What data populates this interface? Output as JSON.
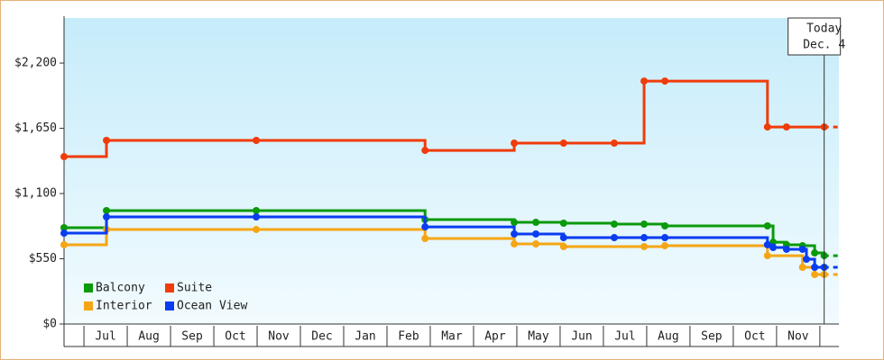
{
  "chart_data": {
    "type": "step-line",
    "ylim": [
      0,
      2580
    ],
    "yticks": [
      {
        "value": 0,
        "label": "$0"
      },
      {
        "value": 550,
        "label": "$550"
      },
      {
        "value": 1100,
        "label": "$1,100"
      },
      {
        "value": 1650,
        "label": "$1,650"
      },
      {
        "value": 2200,
        "label": "$2,200"
      }
    ],
    "xlim": [
      -0.46,
      17.44
    ],
    "xticks": [
      {
        "value": 0,
        "label": "Jul"
      },
      {
        "value": 1,
        "label": "Aug"
      },
      {
        "value": 2,
        "label": "Sep"
      },
      {
        "value": 3,
        "label": "Oct"
      },
      {
        "value": 4,
        "label": "Nov"
      },
      {
        "value": 5,
        "label": "Dec"
      },
      {
        "value": 6,
        "label": "Jan"
      },
      {
        "value": 7,
        "label": "Feb"
      },
      {
        "value": 8,
        "label": "Mar"
      },
      {
        "value": 9,
        "label": "Apr"
      },
      {
        "value": 10,
        "label": "May"
      },
      {
        "value": 11,
        "label": "Jun"
      },
      {
        "value": 12,
        "label": "Jul"
      },
      {
        "value": 13,
        "label": "Aug"
      },
      {
        "value": 14,
        "label": "Sep"
      },
      {
        "value": 15,
        "label": "Oct"
      },
      {
        "value": 16,
        "label": "Nov"
      }
    ],
    "today": {
      "x": 17.1,
      "label": "Today",
      "date": "Dec. 4"
    },
    "series": [
      {
        "name": "Balcony",
        "color": "#0a9a0a",
        "x": [
          -0.46,
          0.52,
          3.98,
          7.88,
          9.94,
          10.44,
          11.08,
          12.25,
          12.94,
          13.42,
          15.79,
          15.92,
          16.23,
          16.6,
          16.88,
          17.1
        ],
        "values": [
          812,
          956,
          956,
          880,
          857,
          857,
          850,
          842,
          842,
          827,
          827,
          690,
          668,
          660,
          599,
          576
        ]
      },
      {
        "name": "Suite",
        "color": "#f03c0a",
        "x": [
          -0.46,
          0.52,
          3.98,
          7.88,
          9.94,
          11.08,
          12.25,
          12.94,
          13.42,
          15.79,
          16.23,
          17.1
        ],
        "values": [
          1411,
          1548,
          1548,
          1464,
          1525,
          1525,
          1525,
          2048,
          2048,
          1661,
          1661,
          1661
        ]
      },
      {
        "name": "Interior",
        "color": "#f5a614",
        "x": [
          -0.46,
          0.52,
          3.98,
          7.88,
          9.94,
          10.44,
          11.08,
          12.94,
          13.42,
          15.79,
          16.6,
          16.88,
          17.1
        ],
        "values": [
          668,
          797,
          797,
          721,
          675,
          675,
          653,
          653,
          660,
          576,
          478,
          417,
          417
        ]
      },
      {
        "name": "Ocean View",
        "color": "#0a3cf0",
        "x": [
          -0.46,
          0.52,
          3.98,
          7.88,
          9.94,
          10.44,
          11.08,
          12.25,
          12.94,
          13.42,
          15.79,
          15.92,
          16.23,
          16.6,
          16.69,
          16.88,
          17.1
        ],
        "values": [
          766,
          903,
          903,
          819,
          759,
          759,
          728,
          728,
          728,
          728,
          668,
          645,
          630,
          630,
          546,
          478,
          478
        ]
      }
    ]
  }
}
